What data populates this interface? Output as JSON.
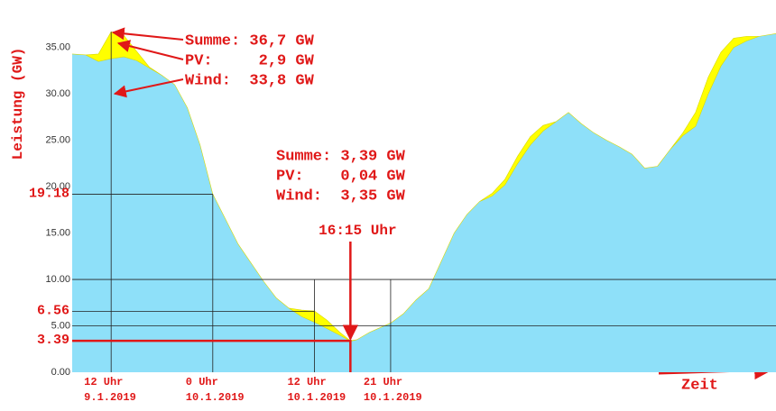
{
  "chart_data": {
    "type": "stacked_area",
    "y_label": "Leistung (GW)",
    "x_label": "Zeit",
    "x": [
      7.4,
      9,
      10.5,
      12,
      13.5,
      15,
      16.5,
      18,
      19.5,
      21,
      22.5,
      24,
      25.5,
      27,
      28.5,
      30,
      31.5,
      33,
      34.5,
      36,
      37.5,
      39,
      40.25,
      41,
      42.5,
      44,
      45,
      46.5,
      48,
      49.5,
      51,
      52.5,
      54,
      55.5,
      57,
      58.5,
      60,
      61.5,
      63,
      64.5,
      66,
      67.5,
      69,
      70.5,
      72,
      73.5,
      75,
      76.5,
      78,
      79.5,
      81,
      82.5,
      84,
      85.5,
      87,
      88.5,
      90.5
    ],
    "series": [
      {
        "color": "#8ee0f9",
        "values": [
          34.3,
          34.2,
          33.5,
          33.8,
          34.0,
          33.6,
          32.8,
          32.0,
          31.0,
          28.5,
          24.5,
          19.2,
          16.5,
          13.8,
          11.8,
          9.8,
          8.0,
          6.9,
          6.0,
          5.4,
          4.7,
          4.0,
          3.35,
          3.5,
          4.3,
          4.9,
          5.3,
          6.3,
          7.8,
          9.0,
          12.0,
          15.0,
          17.0,
          18.4,
          19.0,
          20.2,
          22.5,
          24.5,
          26.0,
          27.0,
          28.0,
          26.8,
          25.8,
          25.0,
          24.3,
          23.5,
          22.0,
          22.2,
          24.0,
          25.5,
          26.5,
          30.0,
          33.0,
          35.0,
          35.7,
          36.2,
          36.5
        ]
      },
      {
        "color": "#ffff00",
        "values": [
          0,
          0,
          0.8,
          2.9,
          2.3,
          1.0,
          0.1,
          0,
          0,
          0,
          0,
          0,
          0,
          0,
          0,
          0,
          0,
          0,
          0.7,
          1.2,
          0.9,
          0.3,
          0.04,
          0,
          0,
          0,
          0,
          0,
          0,
          0,
          0,
          0,
          0,
          0,
          0.3,
          0.6,
          0.8,
          0.9,
          0.6,
          0,
          0,
          0,
          0,
          0,
          0,
          0,
          0,
          0,
          0,
          0.3,
          1.5,
          1.8,
          1.5,
          1.0,
          0.5,
          0,
          0
        ]
      }
    ],
    "xlim": [
      7.4,
      90.5
    ],
    "ylim": [
      0,
      37.5
    ],
    "yticks": [
      {
        "value": 0,
        "label": "0.00"
      },
      {
        "value": 5,
        "label": "5.00"
      },
      {
        "value": 10,
        "label": "10.00"
      },
      {
        "value": 15,
        "label": "15.00"
      },
      {
        "value": 20,
        "label": "20.00"
      },
      {
        "value": 25,
        "label": "25.00"
      },
      {
        "value": 30,
        "label": "30.00"
      },
      {
        "value": 35,
        "label": "35.00"
      }
    ],
    "marked_yticks": [
      19.18,
      6.56,
      3.39
    ],
    "xticks": [
      {
        "value": 12,
        "label": "12 Uhr",
        "date": "9.1.2019"
      },
      {
        "value": 24,
        "label": "0 Uhr",
        "date": "10.1.2019"
      },
      {
        "value": 36,
        "label": "12 Uhr",
        "date": "10.1.2019"
      },
      {
        "value": 45,
        "label": "21 Uhr",
        "date": "10.1.2019"
      }
    ],
    "grid_values": [
      5,
      10
    ],
    "ref_lines": [
      {
        "x": [
          12,
          12
        ],
        "y": [
          0,
          36.7
        ]
      },
      {
        "x": [
          7.4,
          24
        ],
        "y": [
          19.18,
          19.18
        ]
      },
      {
        "x": [
          24,
          24
        ],
        "y": [
          0,
          19.18
        ]
      },
      {
        "x": [
          7.4,
          36
        ],
        "y": [
          6.56,
          6.56
        ]
      },
      {
        "x": [
          36,
          36
        ],
        "y": [
          0,
          10
        ]
      },
      {
        "x": [
          45,
          45
        ],
        "y": [
          0,
          10
        ]
      }
    ],
    "marker": {
      "x": 40.25,
      "y": 3.39,
      "label": "16:15 Uhr"
    },
    "annotations": [
      {
        "lines": [
          "Summe: 36,7 GW",
          "PV:     2,9 GW",
          "Wind:  33,8 GW"
        ]
      },
      {
        "lines": [
          "Summe: 3,39 GW",
          "PV:    0,04 GW",
          "Wind:  3,35 GW"
        ]
      }
    ]
  }
}
